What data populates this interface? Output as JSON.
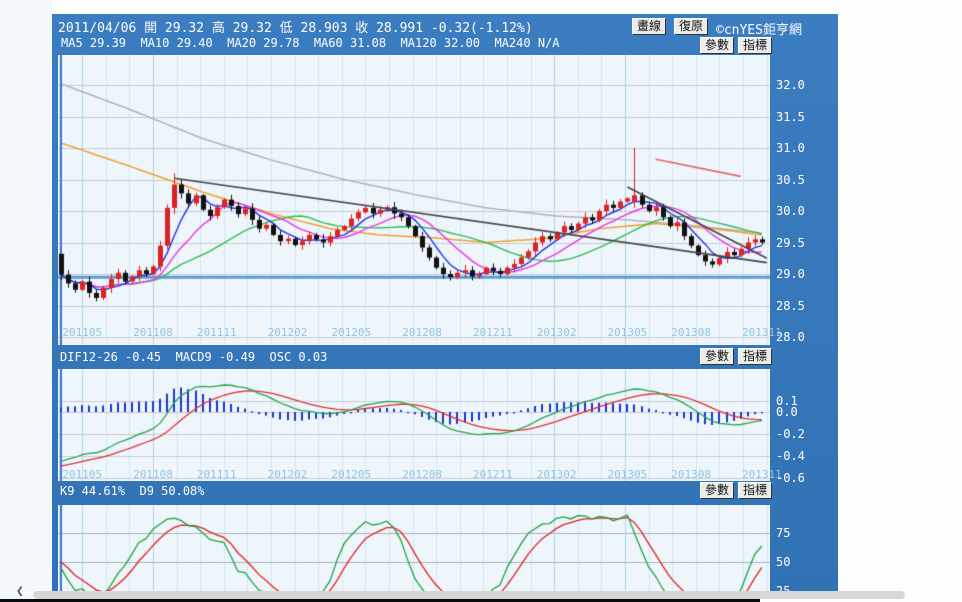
{
  "app": {
    "quote_line": "2011/04/06 開 29.32 高 29.32 低 28.903 收 28.991 -0.32(-1.12%)",
    "ma_line": "MA5 29.39  MA10 29.40  MA20 29.78  MA60 31.08  MA120 32.00  MA240 N/A",
    "buttons": {
      "draw_line": "畫線",
      "undo": "復原",
      "params": "參數",
      "indicator": "指標"
    },
    "copyright": "©cnYES鉅亨網",
    "macd_label": "DIF12-26 -0.45  MACD9 -0.49  OSC 0.03",
    "kd_label": "K9 44.61%  D9 50.08%"
  },
  "chart_data": [
    {
      "type": "candlestick",
      "panel": "main-price",
      "x_labels": [
        "201105",
        "201108",
        "201111",
        "201202",
        "201205",
        "201208",
        "201211",
        "201302",
        "201305",
        "201308",
        "201311"
      ],
      "label_indices": [
        3,
        13,
        22,
        32,
        41,
        51,
        61,
        70,
        80,
        89,
        99
      ],
      "y_ticks": [
        "32.0",
        "31.5",
        "31.0",
        "30.5",
        "30.0",
        "29.5",
        "29.0",
        "28.5",
        "28.0"
      ],
      "ylim": [
        27.87,
        32.48
      ],
      "first_candle": {
        "date": "2011/04/06",
        "open": 29.32,
        "high": 29.32,
        "low": 28.903,
        "close": 28.991,
        "change": "-0.32(-1.12%)"
      },
      "closes": [
        28.99,
        28.85,
        28.75,
        28.88,
        28.7,
        28.62,
        28.78,
        28.92,
        29.02,
        28.88,
        28.96,
        29.06,
        29.0,
        29.12,
        29.45,
        30.05,
        30.42,
        30.28,
        30.12,
        30.25,
        30.02,
        29.92,
        30.06,
        30.18,
        30.08,
        29.95,
        30.04,
        29.86,
        29.72,
        29.78,
        29.62,
        29.52,
        29.56,
        29.46,
        29.52,
        29.62,
        29.55,
        29.5,
        29.6,
        29.7,
        29.76,
        29.88,
        29.98,
        30.05,
        29.96,
        30.02,
        30.06,
        29.96,
        29.9,
        29.76,
        29.6,
        29.42,
        29.26,
        29.1,
        29.0,
        28.95,
        29.02,
        29.06,
        28.96,
        29.0,
        29.1,
        29.05,
        29.0,
        29.1,
        29.16,
        29.26,
        29.36,
        29.5,
        29.6,
        29.55,
        29.66,
        29.76,
        29.7,
        29.8,
        29.9,
        29.85,
        30.0,
        30.1,
        30.05,
        30.15,
        30.2,
        30.25,
        30.1,
        30.0,
        30.06,
        29.9,
        29.76,
        29.82,
        29.6,
        29.45,
        29.3,
        29.2,
        29.15,
        29.25,
        29.35,
        29.3,
        29.4,
        29.5,
        29.55,
        29.5
      ],
      "overrides": {
        "0": [
          29.32,
          29.32,
          28.903,
          28.991
        ],
        "16": [
          30.05,
          30.6,
          29.95,
          30.42
        ],
        "81": [
          30.15,
          31.0,
          30.05,
          30.25
        ]
      },
      "up_color": "#dd2222",
      "down_color": "#111111",
      "moving_averages": {
        "ma5": {
          "period": 5,
          "latest": "29.39",
          "color": "#2233ee"
        },
        "ma10": {
          "period": 10,
          "latest": "29.40",
          "color": "#ee33ee"
        },
        "ma20": {
          "period": 20,
          "latest": "29.78",
          "color": "#33bb55"
        },
        "ma60": {
          "latest": "31.08",
          "color": "#f0a030",
          "points": [
            [
              0,
              31.08
            ],
            [
              10,
              30.7
            ],
            [
              20,
              30.3
            ],
            [
              30,
              29.95
            ],
            [
              38,
              29.72
            ],
            [
              45,
              29.62
            ],
            [
              52,
              29.58
            ],
            [
              60,
              29.5
            ],
            [
              68,
              29.56
            ],
            [
              76,
              29.72
            ],
            [
              84,
              29.8
            ],
            [
              92,
              29.72
            ],
            [
              99,
              29.62
            ]
          ]
        },
        "ma120": {
          "latest": "32.00",
          "color": "#b0b4b8",
          "points": [
            [
              0,
              32.02
            ],
            [
              10,
              31.6
            ],
            [
              20,
              31.15
            ],
            [
              30,
              30.8
            ],
            [
              40,
              30.5
            ],
            [
              50,
              30.26
            ],
            [
              60,
              30.05
            ],
            [
              70,
              29.92
            ],
            [
              80,
              29.86
            ],
            [
              90,
              29.76
            ],
            [
              99,
              29.65
            ]
          ]
        },
        "ma240": {
          "latest": "N/A"
        }
      },
      "trendlines": [
        {
          "color": "#444444",
          "from": [
            16,
            30.52
          ],
          "to": [
            99.7,
            29.18
          ]
        },
        {
          "color": "#444444",
          "from": [
            80,
            30.38
          ],
          "to": [
            99.7,
            29.25
          ]
        },
        {
          "color": "#e06868",
          "from": [
            84,
            30.82
          ],
          "to": [
            96,
            30.55
          ]
        }
      ],
      "support_line": {
        "color": "#5b9bd5",
        "value": 28.95,
        "width": 3
      },
      "crosshair_index": 0
    },
    {
      "type": "macd",
      "panel": "macd",
      "params": {
        "fast": 12,
        "slow": 26,
        "signal": 9
      },
      "seed_values": {
        "dif": -0.45,
        "macd": -0.49,
        "osc": 0.03
      },
      "y_ticks": [
        "0.1",
        "0.0",
        "-0.2",
        "-0.4",
        "-0.6"
      ],
      "colors": {
        "dif": "#2ea050",
        "macd": "#e03030",
        "osc": "#1a35cc"
      }
    },
    {
      "type": "stochastic",
      "panel": "kd",
      "params": {
        "k_period": 9,
        "d_period": 9
      },
      "seed_values": {
        "k": 44.61,
        "d": 50.08
      },
      "y_ticks": [
        "75",
        "50",
        "25"
      ],
      "colors": {
        "k": "#22a040",
        "d": "#e02020"
      }
    }
  ]
}
